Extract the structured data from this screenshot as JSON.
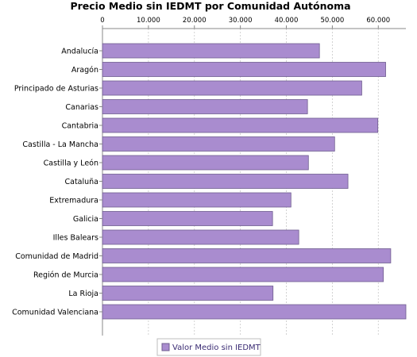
{
  "chart_data": {
    "type": "bar",
    "orientation": "horizontal",
    "title": "Precio Medio sin IEDMT por Comunidad Autónoma",
    "xlabel": "",
    "ylabel": "",
    "xlim": [
      0,
      66000
    ],
    "x_ticks": [
      0,
      10000,
      20000,
      30000,
      40000,
      50000,
      60000
    ],
    "x_tick_labels": [
      "0",
      "10.000",
      "20.000",
      "30.000",
      "40.000",
      "50.000",
      "60.000"
    ],
    "axis_position": "top",
    "grid": true,
    "legend_position": "bottom-center",
    "bar_color": "#a98ccf",
    "bar_edge_color": "#6f5d8f",
    "categories": [
      "Andalucía",
      "Aragón",
      "Principado de Asturias",
      "Canarias",
      "Cantabria",
      "Castilla - La Mancha",
      "Castilla y León",
      "Cataluña",
      "Extremadura",
      "Galicia",
      "Illes Balears",
      "Comunidad de Madrid",
      "Región de Murcia",
      "La Rioja",
      "Comunidad Valenciana"
    ],
    "series": [
      {
        "name": "Valor Medio sin IEDMT",
        "values": [
          47200,
          61600,
          56400,
          44600,
          59900,
          50500,
          44800,
          53400,
          41000,
          37000,
          42700,
          62700,
          61100,
          37100,
          66000
        ]
      }
    ]
  }
}
